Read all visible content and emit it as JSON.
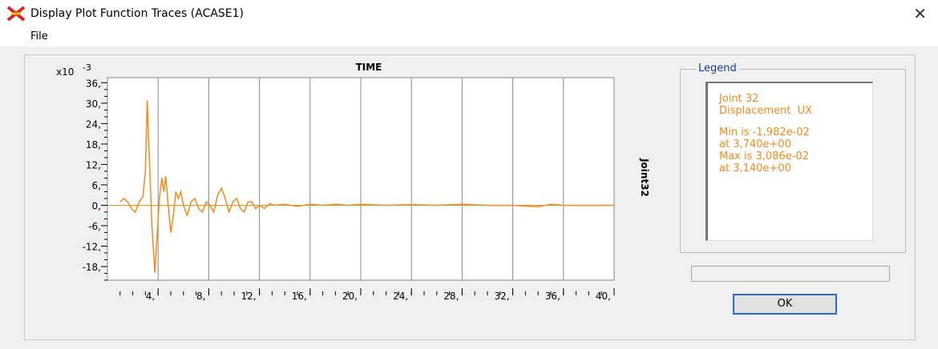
{
  "window": {
    "title": "Display Plot Function Traces  (ACASE1)",
    "menu": [
      "File"
    ]
  },
  "chart_data": {
    "type": "line",
    "title": "TIME",
    "y_multiplier": "x10",
    "y_exponent": "-3",
    "side_label": "Joint32",
    "x": [
      1.0,
      1.3,
      1.6,
      1.9,
      2.2,
      2.5,
      2.8,
      3.0,
      3.14,
      3.3,
      3.5,
      3.74,
      3.9,
      4.1,
      4.3,
      4.45,
      4.6,
      4.8,
      5.0,
      5.2,
      5.4,
      5.6,
      5.8,
      6.0,
      6.3,
      6.6,
      6.9,
      7.2,
      7.5,
      7.8,
      8.1,
      8.4,
      8.7,
      9.0,
      9.3,
      9.6,
      9.9,
      10.2,
      10.5,
      10.8,
      11.1,
      11.4,
      11.7,
      12.0,
      12.4,
      12.8,
      13.2,
      14,
      15,
      16,
      17,
      18,
      19,
      20,
      22,
      24,
      26,
      28,
      30,
      32,
      34,
      35,
      36,
      38,
      40
    ],
    "series": [
      {
        "name": "Joint 32",
        "color": "#f28a1c",
        "values": [
          1,
          2,
          1,
          -1,
          -2,
          1,
          2.5,
          10,
          30.86,
          15,
          -5,
          -19.82,
          -10,
          2,
          8,
          4,
          8.5,
          0,
          -8,
          -3,
          4,
          2,
          4,
          0,
          -3,
          1,
          2,
          -1,
          -2,
          1,
          0,
          -2,
          3,
          5,
          2,
          -2,
          1,
          2,
          -1,
          -2,
          1,
          1,
          -1,
          0,
          -1,
          0.5,
          0,
          0.3,
          -0.3,
          0.3,
          0,
          0.3,
          0,
          0.3,
          0,
          0.2,
          0,
          0.3,
          0,
          0,
          -0.4,
          0.3,
          0,
          0,
          0
        ]
      }
    ],
    "xlim": [
      0,
      40
    ],
    "ylim": [
      -22,
      37.5
    ],
    "xticks": [
      {
        "value": 4,
        "label": "4,"
      },
      {
        "value": 8,
        "label": "8,"
      },
      {
        "value": 12,
        "label": "12,"
      },
      {
        "value": 16,
        "label": "16,"
      },
      {
        "value": 20,
        "label": "20,"
      },
      {
        "value": 24,
        "label": "24,"
      },
      {
        "value": 28,
        "label": "28,"
      },
      {
        "value": 32,
        "label": "32,"
      },
      {
        "value": 36,
        "label": "36,"
      },
      {
        "value": 40,
        "label": "40,"
      }
    ],
    "yticks": [
      {
        "value": 36,
        "label": "36,"
      },
      {
        "value": 30,
        "label": "30,"
      },
      {
        "value": 24,
        "label": "24,"
      },
      {
        "value": 18,
        "label": "18,"
      },
      {
        "value": 12,
        "label": "12,"
      },
      {
        "value": 6,
        "label": "6,"
      },
      {
        "value": 0,
        "label": "0,"
      },
      {
        "value": -6,
        "label": "-6,"
      },
      {
        "value": -12,
        "label": "-12,"
      },
      {
        "value": -18,
        "label": "-18,"
      }
    ],
    "grid": "x"
  },
  "legend": {
    "title": "Legend",
    "lines": [
      "Joint 32",
      "Displacement  UX",
      "Min is -1,982e-02",
      "at 3,740e+00",
      "Max is 3,086e-02",
      "at 3,140e+00"
    ]
  },
  "button": "OK"
}
